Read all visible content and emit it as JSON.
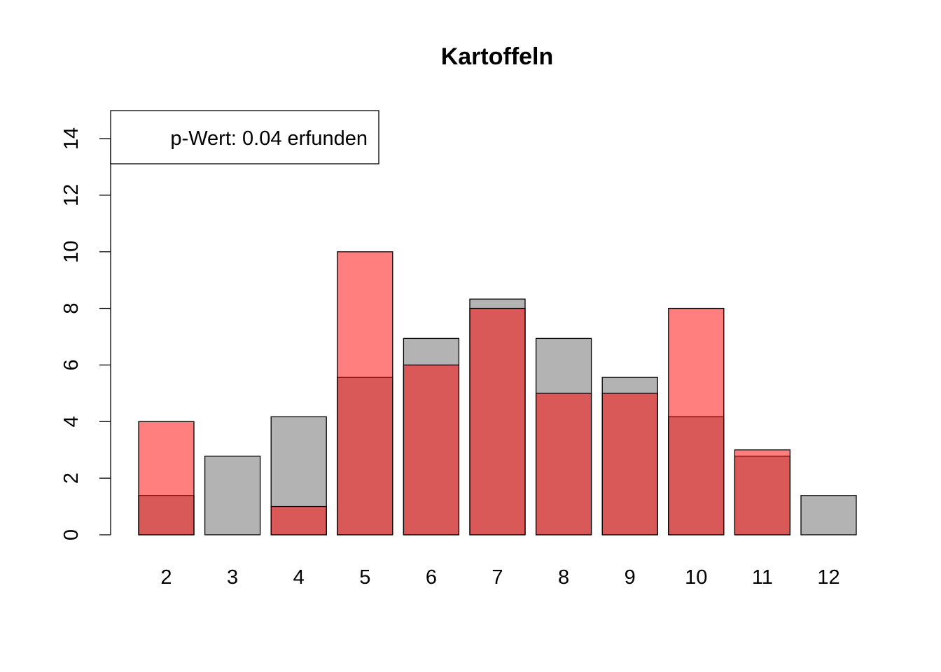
{
  "chart_data": {
    "type": "bar",
    "title": "Kartoffeln",
    "xlabel": "",
    "ylabel": "",
    "categories": [
      "2",
      "3",
      "4",
      "5",
      "6",
      "7",
      "8",
      "9",
      "10",
      "11",
      "12"
    ],
    "ylim": [
      0,
      15
    ],
    "yticks": [
      0,
      2,
      4,
      6,
      8,
      10,
      12,
      14
    ],
    "series": [
      {
        "color": "#b3b3b3",
        "values": [
          1.39,
          2.78,
          4.17,
          5.56,
          6.94,
          8.33,
          6.94,
          5.56,
          4.17,
          2.78,
          1.39
        ]
      },
      {
        "color": "#ff0000",
        "opacity": 0.5,
        "values": [
          4,
          0,
          1,
          10,
          6,
          8,
          5,
          5,
          8,
          3,
          0
        ]
      }
    ],
    "legend": {
      "position": "top-left",
      "text": "p-Wert: 0.04 erfunden"
    },
    "grid": false
  }
}
